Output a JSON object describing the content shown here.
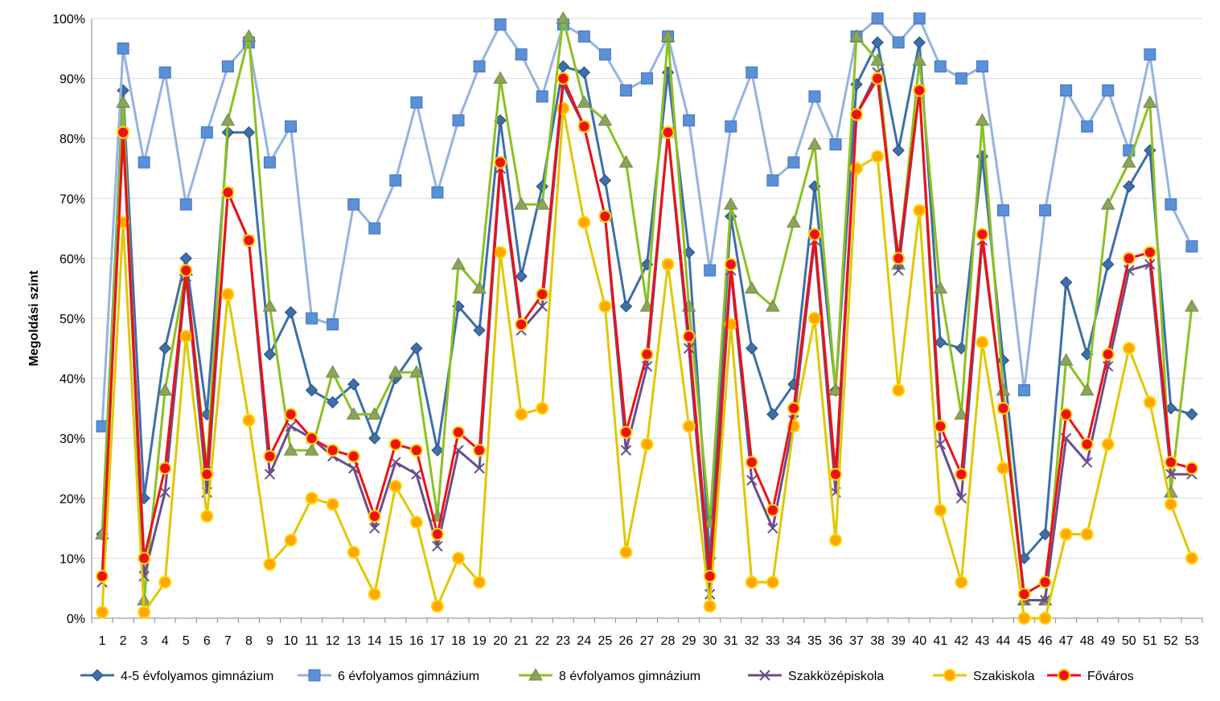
{
  "chart_data": {
    "type": "line",
    "ylabel": "Megoldási szint",
    "ylim": [
      0,
      100
    ],
    "y_ticks": [
      "0%",
      "10%",
      "20%",
      "30%",
      "40%",
      "50%",
      "60%",
      "70%",
      "80%",
      "90%",
      "100%"
    ],
    "grid": "horizontal",
    "legend_position": "bottom",
    "categories": [
      "1",
      "2",
      "3",
      "4",
      "5",
      "6",
      "7",
      "8",
      "9",
      "10",
      "11",
      "12",
      "13",
      "14",
      "15",
      "16",
      "17",
      "18",
      "19",
      "20",
      "21",
      "22",
      "23",
      "24",
      "25",
      "26",
      "27",
      "28",
      "29",
      "30",
      "31",
      "32",
      "33",
      "34",
      "35",
      "36",
      "37",
      "38",
      "39",
      "40",
      "41",
      "42",
      "43",
      "44",
      "45",
      "46",
      "47",
      "48",
      "49",
      "50",
      "51",
      "52",
      "53"
    ],
    "series": [
      {
        "name": "4-5 évfolyamos gimnázium",
        "color": "#3d6fa8",
        "marker": "diamond",
        "values": [
          14,
          88,
          20,
          45,
          60,
          34,
          81,
          81,
          44,
          51,
          38,
          36,
          39,
          30,
          40,
          45,
          28,
          52,
          48,
          83,
          57,
          72,
          92,
          91,
          73,
          52,
          59,
          91,
          61,
          10,
          67,
          45,
          34,
          39,
          72,
          38,
          89,
          96,
          78,
          96,
          46,
          45,
          77,
          43,
          10,
          14,
          56,
          44,
          59,
          72,
          78,
          35,
          34
        ]
      },
      {
        "name": "6 évfolyamos gimnázium",
        "color": "#95b3de",
        "marker": "square",
        "values": [
          32,
          95,
          76,
          91,
          69,
          81,
          92,
          96,
          76,
          82,
          50,
          49,
          69,
          65,
          73,
          86,
          71,
          83,
          92,
          99,
          94,
          87,
          99,
          97,
          94,
          88,
          90,
          97,
          83,
          58,
          82,
          91,
          73,
          76,
          87,
          79,
          97,
          100,
          96,
          100,
          92,
          90,
          92,
          68,
          38,
          68,
          88,
          82,
          88,
          78,
          94,
          69,
          62
        ]
      },
      {
        "name": "8 évfolyamos gimnázium",
        "color": "#8cc022",
        "marker": "triangle",
        "values": [
          14,
          86,
          3,
          38,
          58,
          25,
          83,
          97,
          52,
          28,
          28,
          41,
          34,
          34,
          41,
          41,
          17,
          59,
          55,
          90,
          69,
          69,
          100,
          86,
          83,
          76,
          52,
          97,
          52,
          16,
          69,
          55,
          52,
          66,
          79,
          38,
          97,
          93,
          59,
          93,
          55,
          34,
          83,
          38,
          3,
          3,
          43,
          38,
          69,
          76,
          86,
          21,
          52
        ]
      },
      {
        "name": "Szakközépiskola",
        "color": "#6b4c8c",
        "marker": "x",
        "values": [
          6,
          81,
          7,
          21,
          57,
          21,
          71,
          63,
          24,
          32,
          30,
          27,
          25,
          15,
          26,
          24,
          12,
          28,
          25,
          75,
          48,
          52,
          89,
          82,
          67,
          28,
          42,
          81,
          45,
          4,
          58,
          23,
          15,
          33,
          63,
          21,
          84,
          91,
          58,
          88,
          29,
          20,
          63,
          35,
          3,
          3,
          30,
          26,
          42,
          58,
          59,
          24,
          24
        ]
      },
      {
        "name": "Szakiskola",
        "color": "#e0c800",
        "marker": "circle",
        "marker_fill": "#ffa500",
        "values": [
          1,
          66,
          1,
          6,
          47,
          17,
          54,
          33,
          9,
          13,
          20,
          19,
          11,
          4,
          22,
          16,
          2,
          10,
          6,
          61,
          34,
          35,
          85,
          66,
          52,
          11,
          29,
          59,
          32,
          2,
          49,
          6,
          6,
          32,
          50,
          13,
          75,
          77,
          38,
          68,
          18,
          6,
          46,
          25,
          0,
          0,
          14,
          14,
          29,
          45,
          36,
          19,
          10
        ]
      },
      {
        "name": "Főváros",
        "color": "#ee1111",
        "marker": "circle",
        "marker_fill": "#ee1111",
        "marker_stroke": "#ffd700",
        "values": [
          7,
          81,
          10,
          25,
          58,
          24,
          71,
          63,
          27,
          34,
          30,
          28,
          27,
          17,
          29,
          28,
          14,
          31,
          28,
          76,
          49,
          54,
          90,
          82,
          67,
          31,
          44,
          81,
          47,
          7,
          59,
          26,
          18,
          35,
          64,
          24,
          84,
          90,
          60,
          88,
          32,
          24,
          64,
          35,
          4,
          6,
          34,
          29,
          44,
          60,
          61,
          26,
          25
        ]
      }
    ]
  }
}
